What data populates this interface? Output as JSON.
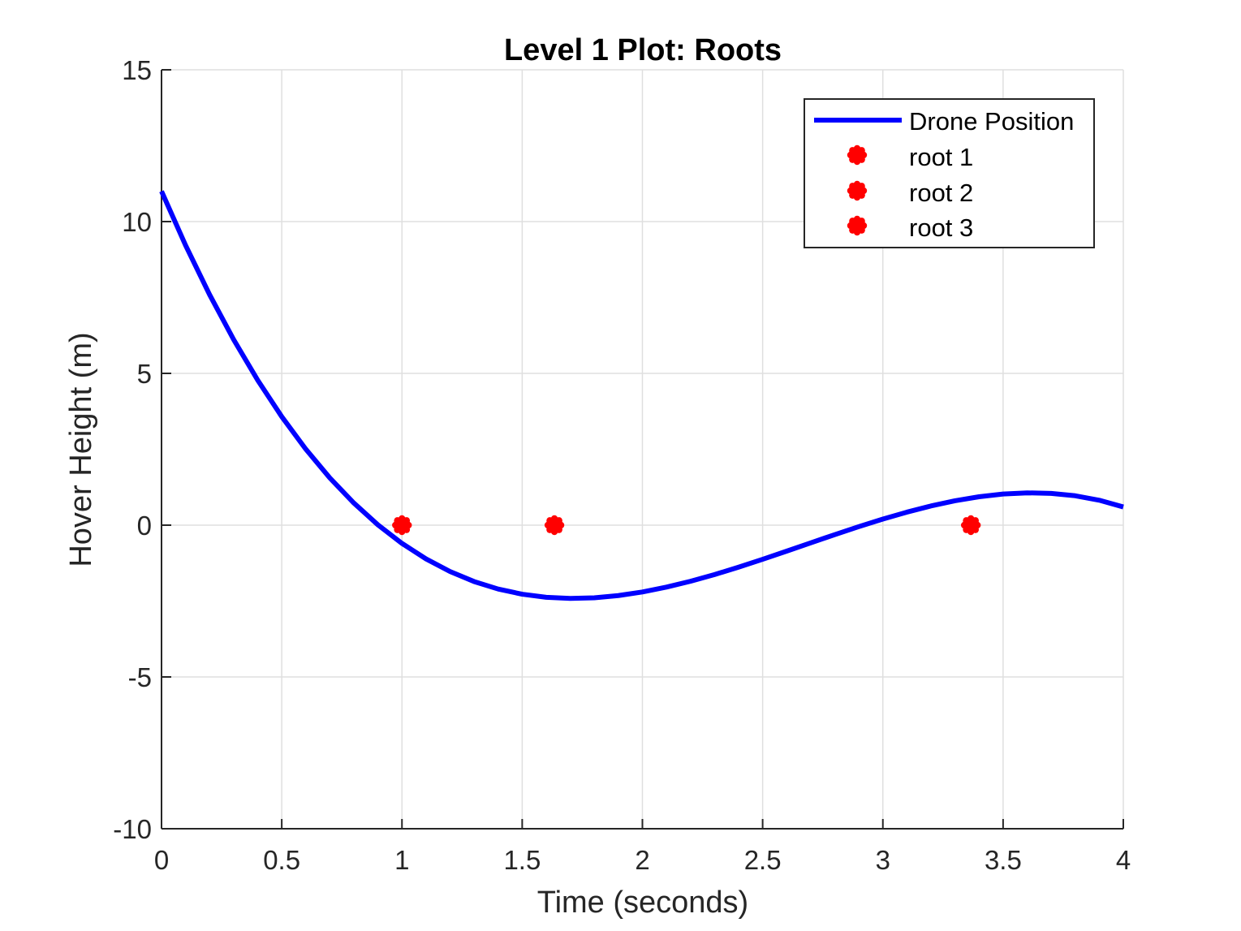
{
  "chart_data": {
    "type": "line",
    "title": "Level 1 Plot: Roots",
    "xlabel": "Time (seconds)",
    "ylabel": "Hover Height (m)",
    "xlim": [
      0,
      4
    ],
    "ylim": [
      -10,
      15
    ],
    "xticks": [
      0,
      0.5,
      1,
      1.5,
      2,
      2.5,
      3,
      3.5,
      4
    ],
    "xtick_labels": [
      "0",
      "0.5",
      "1",
      "1.5",
      "2",
      "2.5",
      "3",
      "3.5",
      "4"
    ],
    "yticks": [
      -10,
      -5,
      0,
      5,
      10,
      15
    ],
    "ytick_labels": [
      "-10",
      "-5",
      "0",
      "5",
      "10",
      "15"
    ],
    "grid": true,
    "legend_position": "top-right",
    "series": [
      {
        "name": "Drone Position",
        "style": "line",
        "color": "#0000ff",
        "x": [
          0,
          0.1,
          0.2,
          0.3,
          0.4,
          0.5,
          0.6,
          0.7,
          0.8,
          0.9,
          1.0,
          1.1,
          1.2,
          1.3,
          1.4,
          1.5,
          1.6,
          1.7,
          1.8,
          1.9,
          2.0,
          2.1,
          2.2,
          2.3,
          2.4,
          2.5,
          2.6,
          2.7,
          2.8,
          2.9,
          3.0,
          3.1,
          3.2,
          3.3,
          3.4,
          3.5,
          3.6,
          3.7,
          3.8,
          3.9,
          4.0
        ],
        "y": [
          11,
          9.219,
          7.592,
          6.113,
          4.776,
          3.575,
          2.504,
          1.557,
          0.728,
          0.011,
          -0.6,
          -1.111,
          -1.528,
          -1.857,
          -2.104,
          -2.275,
          -2.376,
          -2.413,
          -2.392,
          -2.319,
          -2.2,
          -2.041,
          -1.848,
          -1.627,
          -1.384,
          -1.125,
          -0.856,
          -0.583,
          -0.312,
          -0.049,
          0.2,
          0.429,
          0.632,
          0.803,
          0.936,
          1.025,
          1.064,
          1.047,
          0.968,
          0.821,
          0.6
        ]
      },
      {
        "name": "root 1",
        "style": "marker",
        "color": "#ff0000",
        "x": [
          1.0
        ],
        "y": [
          0
        ]
      },
      {
        "name": "root 2",
        "style": "marker",
        "color": "#ff0000",
        "x": [
          1.634
        ],
        "y": [
          0
        ]
      },
      {
        "name": "root 3",
        "style": "marker",
        "color": "#ff0000",
        "x": [
          3.366
        ],
        "y": [
          0
        ]
      }
    ]
  }
}
